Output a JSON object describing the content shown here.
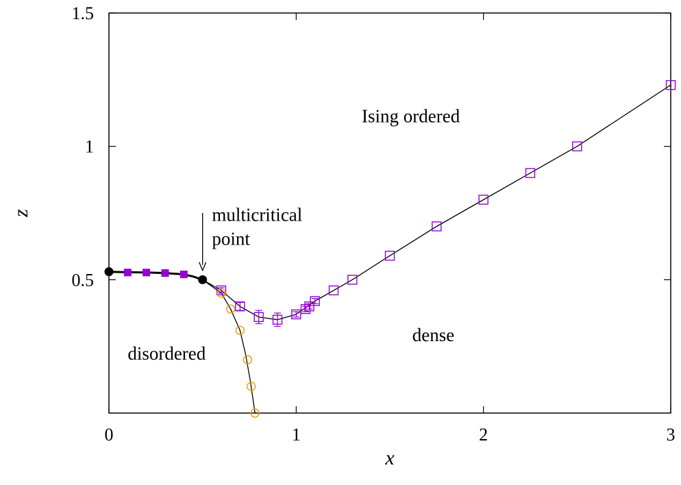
{
  "chart_data": {
    "type": "scatter",
    "xlabel": "x",
    "ylabel": "z",
    "xlim": [
      0,
      3
    ],
    "ylim": [
      0,
      1.5
    ],
    "xticks": [
      "0",
      "1",
      "2",
      "3"
    ],
    "yticks": [
      "0.5",
      "1",
      "1.5"
    ],
    "grid": false,
    "annotations": [
      {
        "text": "Ising ordered",
        "x": 1.35,
        "y": 1.09
      },
      {
        "text": "multicritical",
        "x": 0.55,
        "y": 0.72
      },
      {
        "text": "point",
        "x": 0.55,
        "y": 0.63
      },
      {
        "text": "disordered",
        "x": 0.1,
        "y": 0.2
      },
      {
        "text": "dense",
        "x": 1.62,
        "y": 0.27
      }
    ],
    "arrow": {
      "from": [
        0.5,
        0.75
      ],
      "to": [
        0.5,
        0.535
      ]
    },
    "series": [
      {
        "marker": "filled-circle",
        "color": "#000000",
        "points": [
          [
            0.0,
            0.53
          ],
          [
            0.5,
            0.5
          ]
        ]
      },
      {
        "marker": "filled-square",
        "color": "#9400d3",
        "points": [
          [
            0.1,
            0.527
          ],
          [
            0.2,
            0.527
          ],
          [
            0.3,
            0.525
          ],
          [
            0.4,
            0.52
          ]
        ]
      },
      {
        "marker": "open-square",
        "color": "#9400d3",
        "points": [
          [
            0.6,
            0.46
          ],
          [
            0.7,
            0.4
          ],
          [
            0.8,
            0.36
          ],
          [
            0.9,
            0.35
          ],
          [
            1.0,
            0.37
          ],
          [
            1.05,
            0.39
          ],
          [
            1.07,
            0.4
          ],
          [
            1.1,
            0.42
          ],
          [
            1.2,
            0.46
          ],
          [
            1.3,
            0.5
          ],
          [
            1.5,
            0.59
          ],
          [
            1.75,
            0.7
          ],
          [
            2.0,
            0.8
          ],
          [
            2.25,
            0.9
          ],
          [
            2.5,
            1.0
          ],
          [
            3.0,
            1.23
          ]
        ],
        "yerr": [
          0.01,
          0.015,
          0.025,
          0.025,
          0.01,
          0.01,
          0.01,
          0.01,
          0,
          0,
          0,
          0,
          0,
          0,
          0,
          0
        ]
      },
      {
        "marker": "open-circle",
        "color": "#e69f00",
        "points": [
          [
            0.6,
            0.45
          ],
          [
            0.65,
            0.39
          ],
          [
            0.7,
            0.31
          ],
          [
            0.74,
            0.2
          ],
          [
            0.76,
            0.1
          ],
          [
            0.78,
            0.0
          ]
        ]
      }
    ],
    "curves": [
      {
        "style": "thick",
        "color": "#000000",
        "points": [
          [
            0.0,
            0.53
          ],
          [
            0.1,
            0.528
          ],
          [
            0.2,
            0.527
          ],
          [
            0.3,
            0.525
          ],
          [
            0.4,
            0.52
          ],
          [
            0.45,
            0.512
          ],
          [
            0.5,
            0.5
          ]
        ]
      },
      {
        "style": "thin",
        "color": "#000000",
        "points": [
          [
            0.5,
            0.5
          ],
          [
            0.6,
            0.46
          ],
          [
            0.7,
            0.4
          ],
          [
            0.8,
            0.36
          ],
          [
            0.9,
            0.35
          ],
          [
            1.0,
            0.37
          ],
          [
            1.1,
            0.42
          ],
          [
            1.2,
            0.46
          ],
          [
            1.3,
            0.5
          ],
          [
            1.5,
            0.59
          ],
          [
            1.75,
            0.7
          ],
          [
            2.0,
            0.8
          ],
          [
            2.25,
            0.9
          ],
          [
            2.5,
            1.0
          ],
          [
            3.0,
            1.23
          ]
        ]
      },
      {
        "style": "thin",
        "color": "#000000",
        "points": [
          [
            0.5,
            0.5
          ],
          [
            0.6,
            0.45
          ],
          [
            0.65,
            0.39
          ],
          [
            0.7,
            0.31
          ],
          [
            0.73,
            0.22
          ],
          [
            0.755,
            0.12
          ],
          [
            0.78,
            0.0
          ]
        ]
      }
    ]
  }
}
